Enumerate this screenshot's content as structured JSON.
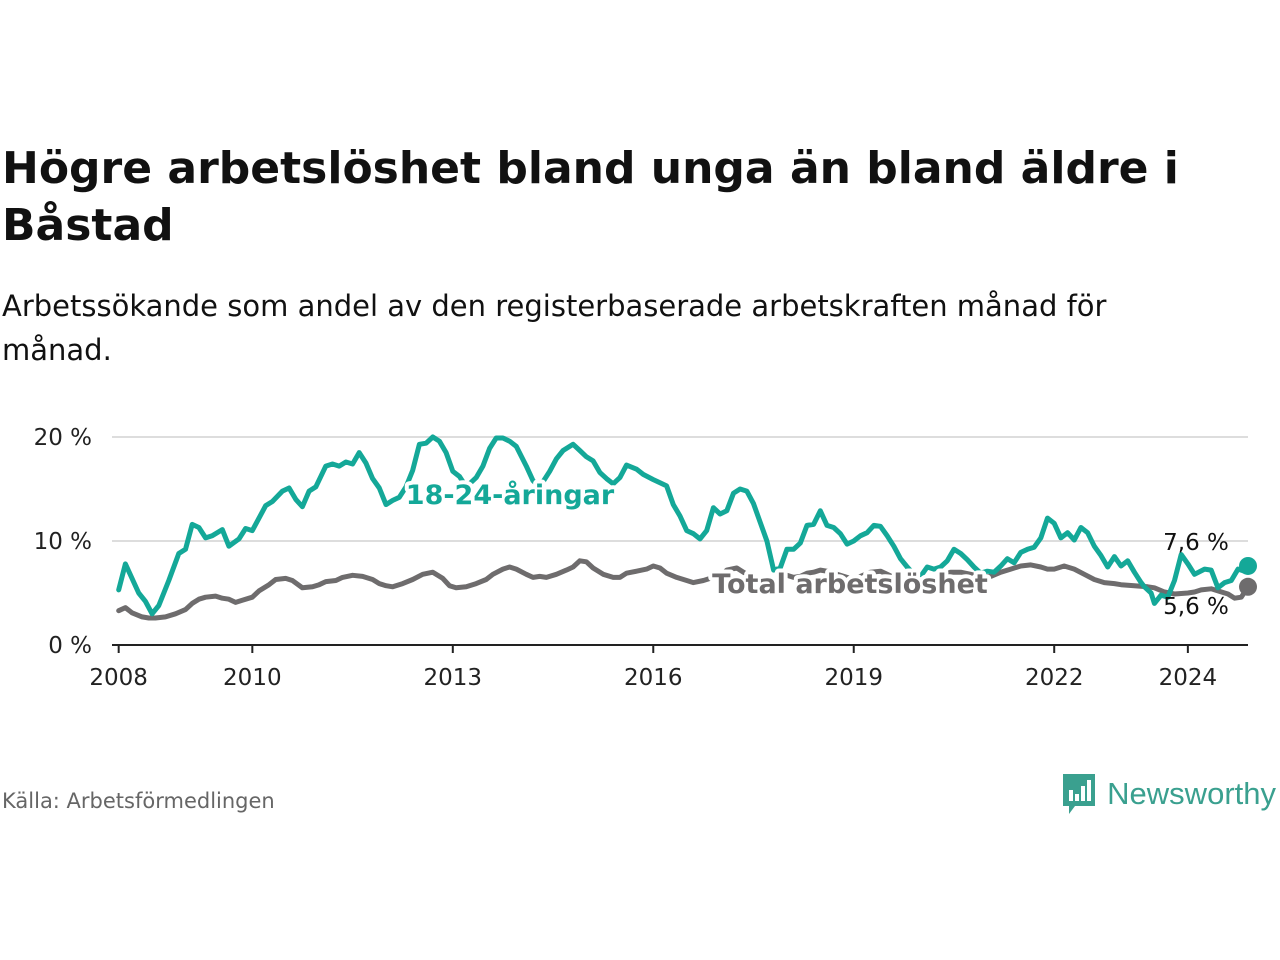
{
  "title": "Högre arbetslöshet bland unga än bland äldre i Båstad",
  "subtitle": "Arbetssökande som andel av den registerbaserade arbetskraften månad för månad.",
  "source": "Källa: Arbetsförmedlingen",
  "brand": "Newsworthy",
  "colors": {
    "youth": "#14a898",
    "total": "#6e6c6d",
    "grid": "#dddddd",
    "brand": "#3aa08f"
  },
  "chart_data": {
    "type": "line",
    "title": "Högre arbetslöshet bland unga än bland äldre i Båstad",
    "xlabel": "",
    "ylabel": "",
    "ylim": [
      0,
      20
    ],
    "xlim": [
      2007.9,
      2024.9
    ],
    "yticks": [
      0,
      10,
      20
    ],
    "ytick_labels": [
      "0 %",
      "10 %",
      "20 %"
    ],
    "xticks": [
      2008,
      2010,
      2013,
      2016,
      2019,
      2022,
      2024
    ],
    "xtick_labels": [
      "2008",
      "2010",
      "2013",
      "2016",
      "2019",
      "2022",
      "2024"
    ],
    "grid": true,
    "series": [
      {
        "name": "18-24-åringar",
        "end_label": "7,6 %",
        "points": [
          [
            2008.0,
            5.3
          ],
          [
            2008.1,
            7.8
          ],
          [
            2008.3,
            5.0
          ],
          [
            2008.4,
            4.2
          ],
          [
            2008.5,
            3.0
          ],
          [
            2008.6,
            3.8
          ],
          [
            2008.75,
            6.2
          ],
          [
            2008.9,
            8.8
          ],
          [
            2009.0,
            9.2
          ],
          [
            2009.1,
            11.6
          ],
          [
            2009.2,
            11.3
          ],
          [
            2009.3,
            10.3
          ],
          [
            2009.4,
            10.5
          ],
          [
            2009.55,
            11.1
          ],
          [
            2009.65,
            9.5
          ],
          [
            2009.8,
            10.2
          ],
          [
            2009.9,
            11.2
          ],
          [
            2010.0,
            11.0
          ],
          [
            2010.2,
            13.4
          ],
          [
            2010.3,
            13.8
          ],
          [
            2010.45,
            14.8
          ],
          [
            2010.55,
            15.1
          ],
          [
            2010.65,
            14.0
          ],
          [
            2010.75,
            13.3
          ],
          [
            2010.85,
            14.8
          ],
          [
            2010.95,
            15.2
          ],
          [
            2011.1,
            17.2
          ],
          [
            2011.2,
            17.4
          ],
          [
            2011.3,
            17.2
          ],
          [
            2011.4,
            17.6
          ],
          [
            2011.5,
            17.4
          ],
          [
            2011.6,
            18.5
          ],
          [
            2011.7,
            17.5
          ],
          [
            2011.8,
            16.0
          ],
          [
            2011.9,
            15.1
          ],
          [
            2012.0,
            13.5
          ],
          [
            2012.1,
            13.9
          ],
          [
            2012.2,
            14.2
          ],
          [
            2012.3,
            15.2
          ],
          [
            2012.4,
            16.8
          ],
          [
            2012.5,
            19.3
          ],
          [
            2012.6,
            19.4
          ],
          [
            2012.7,
            20.0
          ],
          [
            2012.8,
            19.6
          ],
          [
            2012.9,
            18.5
          ],
          [
            2013.0,
            16.7
          ],
          [
            2013.1,
            16.2
          ],
          [
            2013.2,
            15.2
          ],
          [
            2013.35,
            16.1
          ],
          [
            2013.45,
            17.2
          ],
          [
            2013.55,
            18.9
          ],
          [
            2013.65,
            19.9
          ],
          [
            2013.75,
            19.9
          ],
          [
            2013.85,
            19.6
          ],
          [
            2013.95,
            19.1
          ],
          [
            2014.1,
            17.2
          ],
          [
            2014.2,
            15.8
          ],
          [
            2014.3,
            15.2
          ],
          [
            2014.45,
            16.7
          ],
          [
            2014.55,
            17.9
          ],
          [
            2014.65,
            18.7
          ],
          [
            2014.8,
            19.3
          ],
          [
            2014.9,
            18.7
          ],
          [
            2015.0,
            18.1
          ],
          [
            2015.1,
            17.7
          ],
          [
            2015.2,
            16.6
          ],
          [
            2015.3,
            16.0
          ],
          [
            2015.4,
            15.5
          ],
          [
            2015.5,
            16.1
          ],
          [
            2015.6,
            17.3
          ],
          [
            2015.75,
            16.9
          ],
          [
            2015.85,
            16.4
          ],
          [
            2016.0,
            15.9
          ],
          [
            2016.1,
            15.6
          ],
          [
            2016.2,
            15.3
          ],
          [
            2016.3,
            13.5
          ],
          [
            2016.4,
            12.4
          ],
          [
            2016.5,
            11.0
          ],
          [
            2016.6,
            10.7
          ],
          [
            2016.7,
            10.2
          ],
          [
            2016.8,
            11.0
          ],
          [
            2016.9,
            13.2
          ],
          [
            2017.0,
            12.6
          ],
          [
            2017.1,
            12.9
          ],
          [
            2017.2,
            14.6
          ],
          [
            2017.3,
            15.0
          ],
          [
            2017.4,
            14.8
          ],
          [
            2017.5,
            13.6
          ],
          [
            2017.6,
            11.8
          ],
          [
            2017.7,
            10.0
          ],
          [
            2017.8,
            7.2
          ],
          [
            2017.9,
            7.4
          ],
          [
            2018.0,
            9.2
          ],
          [
            2018.1,
            9.2
          ],
          [
            2018.2,
            9.8
          ],
          [
            2018.3,
            11.5
          ],
          [
            2018.4,
            11.6
          ],
          [
            2018.5,
            12.9
          ],
          [
            2018.6,
            11.5
          ],
          [
            2018.7,
            11.3
          ],
          [
            2018.8,
            10.7
          ],
          [
            2018.9,
            9.7
          ],
          [
            2019.0,
            10.0
          ],
          [
            2019.1,
            10.5
          ],
          [
            2019.2,
            10.8
          ],
          [
            2019.3,
            11.5
          ],
          [
            2019.4,
            11.4
          ],
          [
            2019.5,
            10.5
          ],
          [
            2019.6,
            9.5
          ],
          [
            2019.7,
            8.3
          ],
          [
            2019.8,
            7.5
          ],
          [
            2019.9,
            6.8
          ],
          [
            2020.0,
            6.6
          ],
          [
            2020.1,
            7.5
          ],
          [
            2020.2,
            7.3
          ],
          [
            2020.3,
            7.5
          ],
          [
            2020.4,
            8.1
          ],
          [
            2020.5,
            9.2
          ],
          [
            2020.6,
            8.8
          ],
          [
            2020.7,
            8.2
          ],
          [
            2020.8,
            7.5
          ],
          [
            2020.9,
            6.9
          ],
          [
            2021.0,
            7.1
          ],
          [
            2021.1,
            7.0
          ],
          [
            2021.2,
            7.6
          ],
          [
            2021.3,
            8.3
          ],
          [
            2021.4,
            7.9
          ],
          [
            2021.5,
            8.9
          ],
          [
            2021.6,
            9.2
          ],
          [
            2021.7,
            9.4
          ],
          [
            2021.8,
            10.3
          ],
          [
            2021.9,
            12.2
          ],
          [
            2022.0,
            11.7
          ],
          [
            2022.1,
            10.3
          ],
          [
            2022.2,
            10.8
          ],
          [
            2022.3,
            10.1
          ],
          [
            2022.4,
            11.3
          ],
          [
            2022.5,
            10.8
          ],
          [
            2022.6,
            9.5
          ],
          [
            2022.7,
            8.6
          ],
          [
            2022.8,
            7.5
          ],
          [
            2022.9,
            8.5
          ],
          [
            2023.0,
            7.6
          ],
          [
            2023.1,
            8.1
          ],
          [
            2023.2,
            7.0
          ],
          [
            2023.3,
            6.0
          ],
          [
            2023.35,
            5.6
          ],
          [
            2023.45,
            5.0
          ],
          [
            2023.5,
            4.0
          ],
          [
            2023.6,
            4.8
          ],
          [
            2023.7,
            4.6
          ],
          [
            2023.8,
            6.2
          ],
          [
            2023.9,
            8.7
          ],
          [
            2024.0,
            7.8
          ],
          [
            2024.1,
            6.8
          ],
          [
            2024.25,
            7.3
          ],
          [
            2024.35,
            7.2
          ],
          [
            2024.45,
            5.5
          ],
          [
            2024.55,
            6.0
          ],
          [
            2024.65,
            6.2
          ],
          [
            2024.75,
            7.3
          ],
          [
            2024.85,
            7.1
          ],
          [
            2024.9,
            7.6
          ]
        ]
      },
      {
        "name": "Total arbetslöshet",
        "end_label": "5,6 %",
        "points": [
          [
            2008.0,
            3.3
          ],
          [
            2008.1,
            3.6
          ],
          [
            2008.2,
            3.1
          ],
          [
            2008.35,
            2.7
          ],
          [
            2008.45,
            2.6
          ],
          [
            2008.55,
            2.6
          ],
          [
            2008.7,
            2.7
          ],
          [
            2008.85,
            3.0
          ],
          [
            2009.0,
            3.4
          ],
          [
            2009.1,
            4.0
          ],
          [
            2009.2,
            4.4
          ],
          [
            2009.3,
            4.6
          ],
          [
            2009.45,
            4.7
          ],
          [
            2009.55,
            4.5
          ],
          [
            2009.65,
            4.4
          ],
          [
            2009.75,
            4.1
          ],
          [
            2009.85,
            4.3
          ],
          [
            2010.0,
            4.6
          ],
          [
            2010.1,
            5.2
          ],
          [
            2010.25,
            5.8
          ],
          [
            2010.35,
            6.3
          ],
          [
            2010.5,
            6.4
          ],
          [
            2010.6,
            6.2
          ],
          [
            2010.75,
            5.5
          ],
          [
            2010.9,
            5.6
          ],
          [
            2011.0,
            5.8
          ],
          [
            2011.1,
            6.1
          ],
          [
            2011.25,
            6.2
          ],
          [
            2011.35,
            6.5
          ],
          [
            2011.5,
            6.7
          ],
          [
            2011.65,
            6.6
          ],
          [
            2011.8,
            6.3
          ],
          [
            2011.9,
            5.9
          ],
          [
            2012.0,
            5.7
          ],
          [
            2012.1,
            5.6
          ],
          [
            2012.25,
            5.9
          ],
          [
            2012.4,
            6.3
          ],
          [
            2012.55,
            6.8
          ],
          [
            2012.7,
            7.0
          ],
          [
            2012.85,
            6.4
          ],
          [
            2012.95,
            5.7
          ],
          [
            2013.05,
            5.5
          ],
          [
            2013.2,
            5.6
          ],
          [
            2013.35,
            5.9
          ],
          [
            2013.5,
            6.3
          ],
          [
            2013.6,
            6.8
          ],
          [
            2013.75,
            7.3
          ],
          [
            2013.85,
            7.5
          ],
          [
            2013.95,
            7.3
          ],
          [
            2014.1,
            6.8
          ],
          [
            2014.2,
            6.5
          ],
          [
            2014.3,
            6.6
          ],
          [
            2014.4,
            6.5
          ],
          [
            2014.55,
            6.8
          ],
          [
            2014.7,
            7.2
          ],
          [
            2014.8,
            7.5
          ],
          [
            2014.9,
            8.1
          ],
          [
            2015.0,
            8.0
          ],
          [
            2015.1,
            7.4
          ],
          [
            2015.25,
            6.8
          ],
          [
            2015.4,
            6.5
          ],
          [
            2015.5,
            6.5
          ],
          [
            2015.6,
            6.9
          ],
          [
            2015.75,
            7.1
          ],
          [
            2015.9,
            7.3
          ],
          [
            2016.0,
            7.6
          ],
          [
            2016.1,
            7.4
          ],
          [
            2016.2,
            6.9
          ],
          [
            2016.35,
            6.5
          ],
          [
            2016.5,
            6.2
          ],
          [
            2016.6,
            6.0
          ],
          [
            2016.75,
            6.2
          ],
          [
            2016.9,
            6.5
          ],
          [
            2017.0,
            6.6
          ],
          [
            2017.1,
            7.2
          ],
          [
            2017.25,
            7.4
          ],
          [
            2017.35,
            7.0
          ],
          [
            2017.5,
            6.4
          ],
          [
            2017.6,
            5.8
          ],
          [
            2017.7,
            5.6
          ],
          [
            2017.8,
            5.9
          ],
          [
            2017.9,
            6.3
          ],
          [
            2018.0,
            6.7
          ],
          [
            2018.1,
            6.5
          ],
          [
            2018.2,
            6.6
          ],
          [
            2018.3,
            6.9
          ],
          [
            2018.4,
            7.0
          ],
          [
            2018.5,
            7.2
          ],
          [
            2018.6,
            7.1
          ],
          [
            2018.75,
            6.8
          ],
          [
            2018.9,
            6.5
          ],
          [
            2019.0,
            6.3
          ],
          [
            2019.1,
            6.6
          ],
          [
            2019.25,
            7.0
          ],
          [
            2019.4,
            7.1
          ],
          [
            2019.5,
            6.8
          ],
          [
            2019.6,
            6.5
          ],
          [
            2019.75,
            6.2
          ],
          [
            2019.9,
            6.0
          ],
          [
            2020.0,
            6.1
          ],
          [
            2020.15,
            6.3
          ],
          [
            2020.3,
            6.6
          ],
          [
            2020.45,
            7.0
          ],
          [
            2020.6,
            7.0
          ],
          [
            2020.75,
            6.8
          ],
          [
            2020.9,
            6.5
          ],
          [
            2021.05,
            6.6
          ],
          [
            2021.2,
            7.0
          ],
          [
            2021.35,
            7.3
          ],
          [
            2021.5,
            7.6
          ],
          [
            2021.65,
            7.7
          ],
          [
            2021.8,
            7.5
          ],
          [
            2021.9,
            7.3
          ],
          [
            2022.0,
            7.3
          ],
          [
            2022.15,
            7.6
          ],
          [
            2022.3,
            7.3
          ],
          [
            2022.45,
            6.8
          ],
          [
            2022.6,
            6.3
          ],
          [
            2022.75,
            6.0
          ],
          [
            2022.9,
            5.9
          ],
          [
            2023.0,
            5.8
          ],
          [
            2023.2,
            5.7
          ],
          [
            2023.4,
            5.6
          ],
          [
            2023.5,
            5.5
          ],
          [
            2023.65,
            5.1
          ],
          [
            2023.8,
            4.9
          ],
          [
            2024.0,
            5.0
          ],
          [
            2024.1,
            5.1
          ],
          [
            2024.2,
            5.3
          ],
          [
            2024.35,
            5.4
          ],
          [
            2024.45,
            5.2
          ],
          [
            2024.6,
            4.9
          ],
          [
            2024.7,
            4.5
          ],
          [
            2024.8,
            4.6
          ],
          [
            2024.9,
            5.6
          ]
        ]
      }
    ]
  }
}
